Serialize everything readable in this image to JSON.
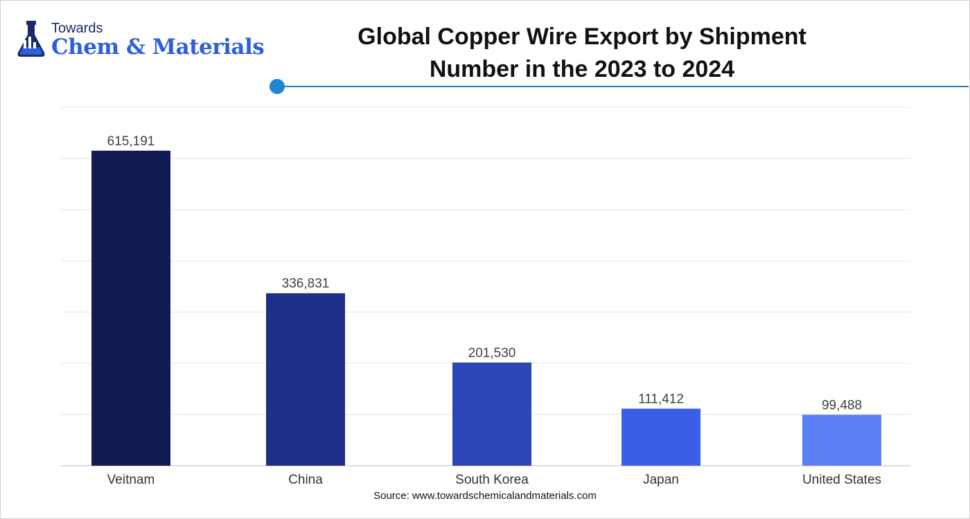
{
  "header": {
    "logo_top": "Towards",
    "logo_brand": "Chem & Materials",
    "title_line1": "Global Copper Wire Export by Shipment",
    "title_line2": "Number in the 2023 to 2024"
  },
  "footer": {
    "source": "Source: www.towardschemicalandmaterials.com"
  },
  "chart_data": {
    "type": "bar",
    "title": "Global Copper Wire Export by Shipment Number in the 2023 to 2024",
    "xlabel": "",
    "ylabel": "",
    "categories": [
      "Veitnam",
      "China",
      "South Korea",
      "Japan",
      "United States"
    ],
    "values": [
      615191,
      336831,
      201530,
      111412,
      99488
    ],
    "value_labels": [
      "615,191",
      "336,831",
      "201,530",
      "111,412",
      "99,488"
    ],
    "ylim": [
      0,
      700000
    ],
    "grid_step": 100000,
    "grid": true,
    "legend": "none",
    "colors": [
      "#111a52",
      "#1e2f87",
      "#2c46b8",
      "#3b5ee6",
      "#5b7ff7"
    ]
  }
}
